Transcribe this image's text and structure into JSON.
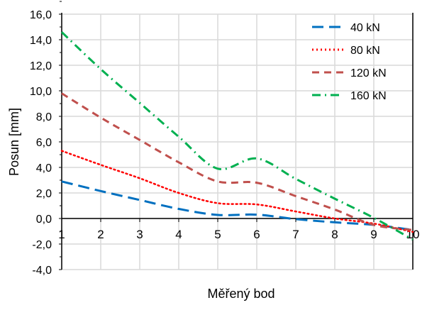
{
  "chart_data": {
    "type": "line",
    "title": "",
    "xlabel": "Měřený bod",
    "ylabel": "Posun [mm]",
    "x": [
      1,
      2,
      3,
      4,
      5,
      6,
      7,
      8,
      9,
      10
    ],
    "xlim": [
      1,
      10
    ],
    "ylim": [
      -4,
      16
    ],
    "ytick_step": 2,
    "ytick_labels": [
      "-4,0",
      "-2,0",
      "0,0",
      "2,0",
      "4,0",
      "6,0",
      "8,0",
      "10,0",
      "12,0",
      "14,0",
      "16,0"
    ],
    "xtick_labels": [
      "1",
      "2",
      "3",
      "4",
      "5",
      "6",
      "7",
      "8",
      "9",
      "10"
    ],
    "grid": true,
    "legend_position": "top-right",
    "series": [
      {
        "name": "40 kN",
        "color": "#0070C0",
        "dash": "long-dash",
        "values": [
          2.9,
          2.15,
          1.45,
          0.75,
          0.28,
          0.3,
          -0.05,
          -0.3,
          -0.5,
          -0.9
        ]
      },
      {
        "name": "80 kN",
        "color": "#FF0000",
        "dash": "dot",
        "values": [
          5.3,
          4.2,
          3.15,
          2.0,
          1.2,
          1.1,
          0.55,
          0.0,
          -0.4,
          -1.05
        ]
      },
      {
        "name": "120 kN",
        "color": "#C0504D",
        "dash": "dash",
        "values": [
          9.8,
          7.9,
          6.15,
          4.4,
          2.9,
          2.8,
          1.75,
          0.7,
          -0.5,
          -0.9
        ]
      },
      {
        "name": "160 kN",
        "color": "#00B050",
        "dash": "dash-dot",
        "values": [
          14.6,
          11.7,
          9.05,
          6.4,
          3.9,
          4.7,
          3.1,
          1.55,
          0.05,
          -1.65
        ]
      }
    ]
  }
}
